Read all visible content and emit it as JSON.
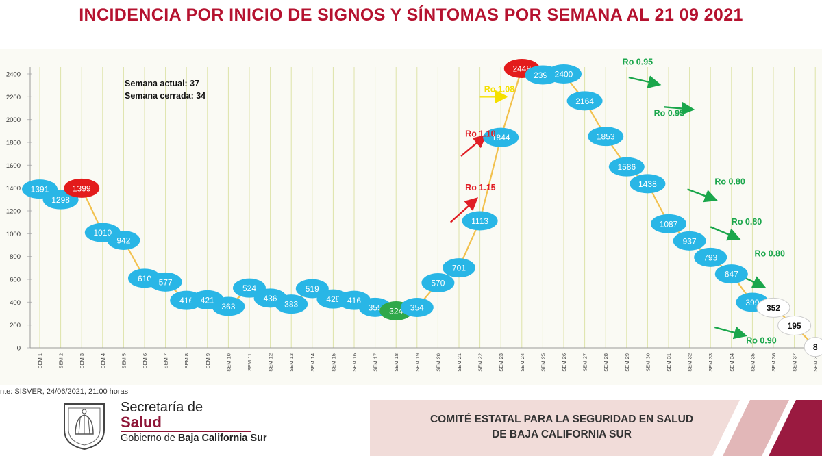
{
  "header": {
    "title": "INCIDENCIA POR INICIO DE SIGNOS Y SÍNTOMAS POR SEMANA AL 21 09 2021"
  },
  "notes": {
    "current_week": "Semana actual: 37",
    "closed_week": "Semana cerrada: 34"
  },
  "source": "nte: SISVER, 24/06/2021, 21:00 horas",
  "footer": {
    "sec_line1": "Secretaría de",
    "sec_line2": "Salud",
    "gov_prefix": "Gobierno de ",
    "gov_name": "Baja California Sur",
    "committee_line1": "COMITÉ ESTATAL PARA LA SEGURIDAD EN SALUD",
    "committee_line2": "DE BAJA CALIFORNIA SUR"
  },
  "colors": {
    "title": "#b5122f",
    "bubble": "#29b6e6",
    "bubble_peak": "#e31b1b",
    "bubble_min": "#2fa84a",
    "bubble_open": "#ffffff",
    "line": "#f2c14e",
    "arrow_red": "#e01e26",
    "arrow_green": "#1aa64b",
    "arrow_yellow": "#f5e000",
    "brand": "#8e1537"
  },
  "chart_data": {
    "type": "line",
    "title": "INCIDENCIA POR INICIO DE SIGNOS Y SÍNTOMAS POR SEMANA AL 21 09 2021",
    "xlabel": "",
    "ylabel": "",
    "ylim": [
      0,
      2400
    ],
    "yticks": [
      0,
      200,
      400,
      600,
      800,
      1000,
      1200,
      1400,
      1600,
      1800,
      2000,
      2200,
      2400
    ],
    "grid": true,
    "categories": [
      "SEM 1",
      "SEM 2",
      "SEM 3",
      "SEM 4",
      "SEM 5",
      "SEM 6",
      "SEM 7",
      "SEM 8",
      "SEM 9",
      "SEM 10",
      "SEM 11",
      "SEM 12",
      "SEM 13",
      "SEM 14",
      "SEM 15",
      "SEM 16",
      "SEM 17",
      "SEM 18",
      "SEM 19",
      "SEM 20",
      "SEM 21",
      "SEM 22",
      "SEM 23",
      "SEM 24",
      "SEM 25",
      "SEM 26",
      "SEM 27",
      "SEM 28",
      "SEM 29",
      "SEM 30",
      "SEM 31",
      "SEM 32",
      "SEM 33",
      "SEM 34",
      "SEM 35",
      "SEM 36",
      "SEM 37",
      "SEM 38"
    ],
    "points": [
      {
        "week": 1,
        "value": 1391,
        "label": "1391",
        "kind": "normal"
      },
      {
        "week": 2,
        "value": 1298,
        "label": "1298",
        "kind": "normal"
      },
      {
        "week": 3,
        "value": 1399,
        "label": "1399",
        "kind": "peak"
      },
      {
        "week": 4,
        "value": 1010,
        "label": "1010",
        "kind": "normal"
      },
      {
        "week": 5,
        "value": 942,
        "label": "942",
        "kind": "normal"
      },
      {
        "week": 6,
        "value": 610,
        "label": "610",
        "kind": "normal"
      },
      {
        "week": 7,
        "value": 577,
        "label": "577",
        "kind": "normal"
      },
      {
        "week": 8,
        "value": 416,
        "label": "416",
        "kind": "normal"
      },
      {
        "week": 9,
        "value": 421,
        "label": "421",
        "kind": "normal"
      },
      {
        "week": 10,
        "value": 363,
        "label": "363",
        "kind": "normal"
      },
      {
        "week": 11,
        "value": 524,
        "label": "524",
        "kind": "normal"
      },
      {
        "week": 12,
        "value": 436,
        "label": "436",
        "kind": "normal"
      },
      {
        "week": 13,
        "value": 383,
        "label": "383",
        "kind": "normal"
      },
      {
        "week": 14,
        "value": 519,
        "label": "519",
        "kind": "normal"
      },
      {
        "week": 15,
        "value": 428,
        "label": "428",
        "kind": "normal"
      },
      {
        "week": 16,
        "value": 416,
        "label": "416",
        "kind": "normal"
      },
      {
        "week": 17,
        "value": 355,
        "label": "355",
        "kind": "normal"
      },
      {
        "week": 18,
        "value": 324,
        "label": "324",
        "kind": "min"
      },
      {
        "week": 19,
        "value": 354,
        "label": "354",
        "kind": "normal"
      },
      {
        "week": 20,
        "value": 570,
        "label": "570",
        "kind": "normal"
      },
      {
        "week": 21,
        "value": 701,
        "label": "701",
        "kind": "normal"
      },
      {
        "week": 22,
        "value": 1113,
        "label": "1113",
        "kind": "normal"
      },
      {
        "week": 23,
        "value": 1844,
        "label": "1844",
        "kind": "normal"
      },
      {
        "week": 24,
        "value": 2448,
        "label": "2448",
        "kind": "peak"
      },
      {
        "week": 25,
        "value": 2391,
        "label": "2391",
        "kind": "normal"
      },
      {
        "week": 26,
        "value": 2400,
        "label": "2400",
        "kind": "normal"
      },
      {
        "week": 27,
        "value": 2164,
        "label": "2164",
        "kind": "normal"
      },
      {
        "week": 28,
        "value": 1853,
        "label": "1853",
        "kind": "normal"
      },
      {
        "week": 29,
        "value": 1586,
        "label": "1586",
        "kind": "normal"
      },
      {
        "week": 30,
        "value": 1438,
        "label": "1438",
        "kind": "normal"
      },
      {
        "week": 31,
        "value": 1087,
        "label": "1087",
        "kind": "normal"
      },
      {
        "week": 32,
        "value": 937,
        "label": "937",
        "kind": "normal"
      },
      {
        "week": 33,
        "value": 793,
        "label": "793",
        "kind": "normal"
      },
      {
        "week": 34,
        "value": 647,
        "label": "647",
        "kind": "normal"
      },
      {
        "week": 35,
        "value": 399,
        "label": "399",
        "kind": "normal"
      },
      {
        "week": 36,
        "value": 352,
        "label": "352",
        "kind": "open"
      },
      {
        "week": 37,
        "value": 195,
        "label": "195",
        "kind": "open"
      },
      {
        "week": 38,
        "value": 8,
        "label": "8",
        "kind": "open"
      }
    ],
    "annotations": [
      {
        "text": "Ro 1.10",
        "color": "red",
        "week": 21.3,
        "value": 1850
      },
      {
        "text": "Ro 1.15",
        "color": "red",
        "week": 21.3,
        "value": 1380
      },
      {
        "text": "Ro 1.08",
        "color": "yellow",
        "week": 22.2,
        "value": 2240
      },
      {
        "text": "Ro 0.95",
        "color": "green",
        "week": 28.8,
        "value": 2480
      },
      {
        "text": "Ro 0.95",
        "color": "green",
        "week": 30.3,
        "value": 2030
      },
      {
        "text": "Ro 0.80",
        "color": "green",
        "week": 33.2,
        "value": 1430
      },
      {
        "text": "Ro 0.80",
        "color": "green",
        "week": 34.0,
        "value": 1080
      },
      {
        "text": "Ro 0.80",
        "color": "green",
        "week": 35.1,
        "value": 800
      },
      {
        "text": "Ro 0.90",
        "color": "green",
        "week": 34.7,
        "value": 40
      }
    ],
    "arrows": [
      {
        "color": "red",
        "from_week": 21.1,
        "from_value": 1680,
        "to_week": 22.2,
        "to_value": 1850
      },
      {
        "color": "red",
        "from_week": 20.6,
        "from_value": 1100,
        "to_week": 21.8,
        "to_value": 1300
      },
      {
        "color": "yellow",
        "from_week": 22.0,
        "from_value": 2200,
        "to_week": 23.2,
        "to_value": 2200
      },
      {
        "color": "green",
        "from_week": 29.1,
        "from_value": 2370,
        "to_week": 30.5,
        "to_value": 2310
      },
      {
        "color": "green",
        "from_week": 30.8,
        "from_value": 2110,
        "to_week": 32.1,
        "to_value": 2090
      },
      {
        "color": "green",
        "from_week": 31.9,
        "from_value": 1390,
        "to_week": 33.2,
        "to_value": 1300
      },
      {
        "color": "green",
        "from_week": 33.0,
        "from_value": 1060,
        "to_week": 34.3,
        "to_value": 960
      },
      {
        "color": "green",
        "from_week": 34.2,
        "from_value": 650,
        "to_week": 35.5,
        "to_value": 540
      },
      {
        "color": "green",
        "from_week": 33.2,
        "from_value": 180,
        "to_week": 34.6,
        "to_value": 110
      }
    ]
  }
}
